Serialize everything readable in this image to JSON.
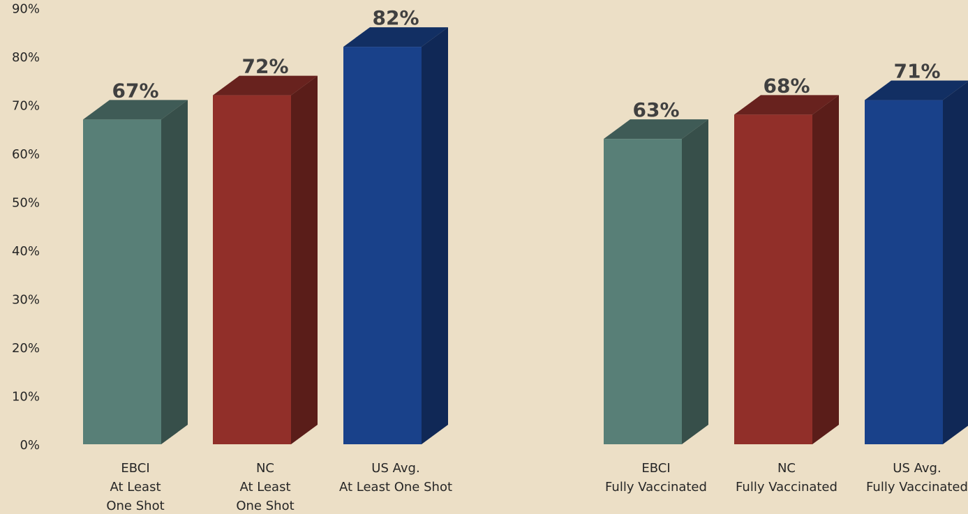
{
  "chart_data": {
    "type": "bar",
    "title": "",
    "xlabel": "",
    "ylabel": "",
    "ylim": [
      0,
      90
    ],
    "y_ticks": [
      "0%",
      "10%",
      "20%",
      "30%",
      "40%",
      "50%",
      "60%",
      "70%",
      "80%",
      "90%"
    ],
    "y_tick_values": [
      0,
      10,
      20,
      30,
      40,
      50,
      60,
      70,
      80,
      90
    ],
    "grid": false,
    "style": "3d-column",
    "bars": [
      {
        "group": 1,
        "category": [
          "EBCI",
          "At Least",
          "One Shot"
        ],
        "value": 67,
        "label": "67%",
        "color": "#587f77"
      },
      {
        "group": 1,
        "category": [
          "NC",
          "At Least",
          "One Shot"
        ],
        "value": 72,
        "label": "72%",
        "color": "#912f29"
      },
      {
        "group": 1,
        "category": [
          "US Avg.",
          "At Least One Shot"
        ],
        "value": 82,
        "label": "82%",
        "color": "#19418a"
      },
      {
        "group": 2,
        "category": [
          "EBCI",
          "Fully Vaccinated"
        ],
        "value": 63,
        "label": "63%",
        "color": "#587f77"
      },
      {
        "group": 2,
        "category": [
          "NC",
          "Fully Vaccinated"
        ],
        "value": 68,
        "label": "68%",
        "color": "#912f29"
      },
      {
        "group": 2,
        "category": [
          "US Avg.",
          "Fully Vaccinated"
        ],
        "value": 71,
        "label": "71%",
        "color": "#19418a"
      }
    ]
  }
}
